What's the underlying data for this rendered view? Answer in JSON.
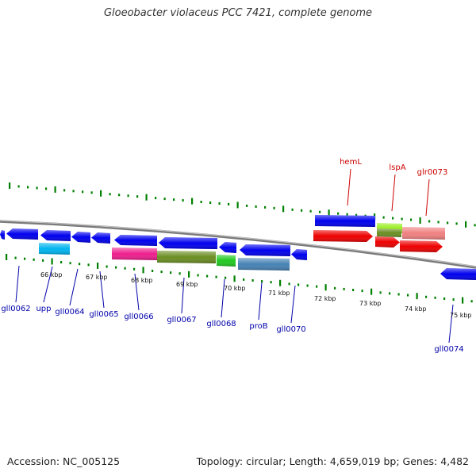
{
  "title": "Gloeobacter violaceus PCC 7421, complete genome",
  "footer": {
    "accession": "Accession: NC_005125",
    "stats": "Topology: circular; Length: 4,659,019 bp; Genes: 4,482"
  },
  "colors": {
    "plus_label": "#cc0000",
    "minus_label": "#0000aa",
    "tick": "#008000",
    "backbone": "#888888"
  },
  "kbp_labels": [
    "66 kbp",
    "67 kbp",
    "68 kbp",
    "69 kbp",
    "70 kbp",
    "71 kbp",
    "72 kbp",
    "73 kbp",
    "74 kbp",
    "75 kbp"
  ],
  "plus_genes": [
    "hemL",
    "lspA",
    "glr0073"
  ],
  "minus_genes": [
    "gll0062",
    "upp",
    "gll0064",
    "gll0065",
    "gll0066",
    "gll0067",
    "gll0068",
    "proB",
    "gll0070",
    "gll0074"
  ]
}
